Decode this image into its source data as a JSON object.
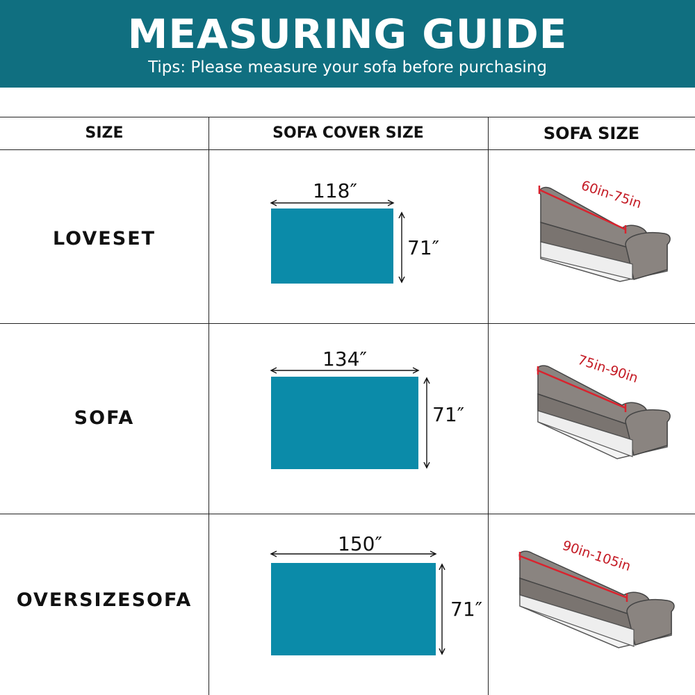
{
  "header": {
    "title": "MEASURING GUIDE",
    "tips": "Tips: Please measure your sofa before purchasing",
    "background_color": "#106f80"
  },
  "table": {
    "columns": [
      "SIZE",
      "SOFA COVER SIZE",
      "SOFA SIZE"
    ],
    "cover_color": "#0b8ba9",
    "measure_line_color": "#d9232e",
    "rows": [
      {
        "size": "LOVESET",
        "cover_width": "118″",
        "cover_height": "71″",
        "sofa_size": "60in-75in",
        "icon": "loveseat-illustration-icon"
      },
      {
        "size": "SOFA",
        "cover_width": "134″",
        "cover_height": "71″",
        "sofa_size": "75in-90in",
        "icon": "sofa-illustration-icon"
      },
      {
        "size": "OVERSIZESOFA",
        "cover_width": "150″",
        "cover_height": "71″",
        "sofa_size": "90in-105in",
        "icon": "oversize-sofa-illustration-icon"
      }
    ]
  }
}
